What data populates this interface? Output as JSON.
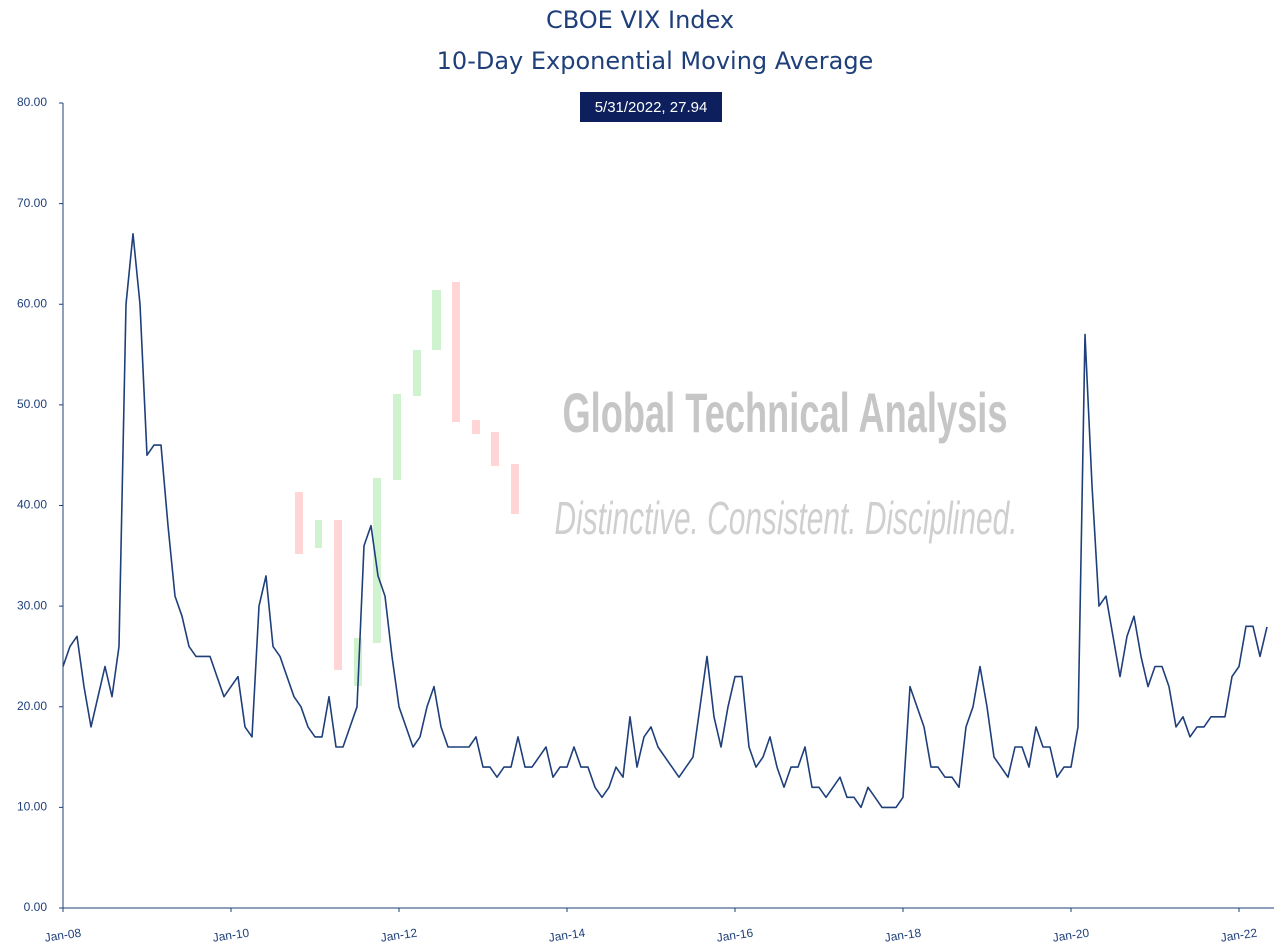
{
  "chart_data": {
    "type": "line",
    "title": "CBOE VIX Index",
    "subtitle": "10-Day Exponential Moving Average",
    "annotation": "5/31/2022, 27.94",
    "watermark": {
      "title": "Global Technical Analysis",
      "tagline": "Distinctive. Consistent.  Disciplined."
    },
    "color": "#1f3f7a",
    "grid": false,
    "x": [
      "2008-01",
      "2008-02",
      "2008-03",
      "2008-04",
      "2008-05",
      "2008-06",
      "2008-07",
      "2008-08",
      "2008-09",
      "2008-10",
      "2008-11",
      "2008-12",
      "2009-01",
      "2009-02",
      "2009-03",
      "2009-04",
      "2009-05",
      "2009-06",
      "2009-07",
      "2009-08",
      "2009-09",
      "2009-10",
      "2009-11",
      "2009-12",
      "2010-01",
      "2010-02",
      "2010-03",
      "2010-04",
      "2010-05",
      "2010-06",
      "2010-07",
      "2010-08",
      "2010-09",
      "2010-10",
      "2010-11",
      "2010-12",
      "2011-01",
      "2011-02",
      "2011-03",
      "2011-04",
      "2011-05",
      "2011-06",
      "2011-07",
      "2011-08",
      "2011-09",
      "2011-10",
      "2011-11",
      "2011-12",
      "2012-01",
      "2012-02",
      "2012-03",
      "2012-04",
      "2012-05",
      "2012-06",
      "2012-07",
      "2012-08",
      "2012-09",
      "2012-10",
      "2012-11",
      "2012-12",
      "2013-01",
      "2013-02",
      "2013-03",
      "2013-04",
      "2013-05",
      "2013-06",
      "2013-07",
      "2013-08",
      "2013-09",
      "2013-10",
      "2013-11",
      "2013-12",
      "2014-01",
      "2014-02",
      "2014-03",
      "2014-04",
      "2014-05",
      "2014-06",
      "2014-07",
      "2014-08",
      "2014-09",
      "2014-10",
      "2014-11",
      "2014-12",
      "2015-01",
      "2015-02",
      "2015-03",
      "2015-04",
      "2015-05",
      "2015-06",
      "2015-07",
      "2015-08",
      "2015-09",
      "2015-10",
      "2015-11",
      "2015-12",
      "2016-01",
      "2016-02",
      "2016-03",
      "2016-04",
      "2016-05",
      "2016-06",
      "2016-07",
      "2016-08",
      "2016-09",
      "2016-10",
      "2016-11",
      "2016-12",
      "2017-01",
      "2017-02",
      "2017-03",
      "2017-04",
      "2017-05",
      "2017-06",
      "2017-07",
      "2017-08",
      "2017-09",
      "2017-10",
      "2017-11",
      "2017-12",
      "2018-01",
      "2018-02",
      "2018-03",
      "2018-04",
      "2018-05",
      "2018-06",
      "2018-07",
      "2018-08",
      "2018-09",
      "2018-10",
      "2018-11",
      "2018-12",
      "2019-01",
      "2019-02",
      "2019-03",
      "2019-04",
      "2019-05",
      "2019-06",
      "2019-07",
      "2019-08",
      "2019-09",
      "2019-10",
      "2019-11",
      "2019-12",
      "2020-01",
      "2020-02",
      "2020-03",
      "2020-04",
      "2020-05",
      "2020-06",
      "2020-07",
      "2020-08",
      "2020-09",
      "2020-10",
      "2020-11",
      "2020-12",
      "2021-01",
      "2021-02",
      "2021-03",
      "2021-04",
      "2021-05",
      "2021-06",
      "2021-07",
      "2021-08",
      "2021-09",
      "2021-10",
      "2021-11",
      "2021-12",
      "2022-01",
      "2022-02",
      "2022-03",
      "2022-04",
      "2022-05"
    ],
    "values": [
      24,
      26,
      27,
      22,
      18,
      21,
      24,
      21,
      26,
      60,
      67,
      60,
      45,
      46,
      46,
      38,
      31,
      29,
      26,
      25,
      25,
      25,
      23,
      21,
      22,
      23,
      18,
      17,
      30,
      33,
      26,
      25,
      23,
      21,
      20,
      18,
      17,
      17,
      21,
      16,
      16,
      18,
      20,
      36,
      38,
      33,
      31,
      25,
      20,
      18,
      16,
      17,
      20,
      22,
      18,
      16,
      16,
      16,
      16,
      17,
      14,
      14,
      13,
      14,
      14,
      17,
      14,
      14,
      15,
      16,
      13,
      14,
      14,
      16,
      14,
      14,
      12,
      11,
      12,
      14,
      13,
      19,
      14,
      17,
      18,
      16,
      15,
      14,
      13,
      14,
      15,
      20,
      25,
      19,
      16,
      20,
      23,
      23,
      16,
      14,
      15,
      17,
      14,
      12,
      14,
      14,
      16,
      12,
      12,
      11,
      12,
      13,
      11,
      11,
      10,
      12,
      11,
      10,
      10,
      10,
      11,
      22,
      20,
      18,
      14,
      14,
      13,
      13,
      12,
      18,
      20,
      24,
      20,
      15,
      14,
      13,
      16,
      16,
      14,
      18,
      16,
      16,
      13,
      14,
      14,
      18,
      57,
      42,
      30,
      31,
      27,
      23,
      27,
      29,
      25,
      22,
      24,
      24,
      22,
      18,
      19,
      17,
      18,
      18,
      19,
      19,
      19,
      23,
      24,
      28,
      28,
      25,
      27.94
    ],
    "xlim": [
      "2008-01",
      "2022-06"
    ],
    "xticks": [
      {
        "value": "2008-01",
        "label": "Jan-08"
      },
      {
        "value": "2010-01",
        "label": "Jan-10"
      },
      {
        "value": "2012-01",
        "label": "Jan-12"
      },
      {
        "value": "2014-01",
        "label": "Jan-14"
      },
      {
        "value": "2016-01",
        "label": "Jan-16"
      },
      {
        "value": "2018-01",
        "label": "Jan-18"
      },
      {
        "value": "2020-01",
        "label": "Jan-20"
      },
      {
        "value": "2022-01",
        "label": "Jan-22"
      }
    ],
    "ylim": [
      0,
      80
    ],
    "yticks": [
      {
        "value": 0,
        "label": "0.00"
      },
      {
        "value": 10,
        "label": "10.00"
      },
      {
        "value": 20,
        "label": "20.00"
      },
      {
        "value": 30,
        "label": "30.00"
      },
      {
        "value": 40,
        "label": "40.00"
      },
      {
        "value": 50,
        "label": "50.00"
      },
      {
        "value": 60,
        "label": "60.00"
      },
      {
        "value": 70,
        "label": "70.00"
      },
      {
        "value": 80,
        "label": "80.00"
      }
    ]
  }
}
